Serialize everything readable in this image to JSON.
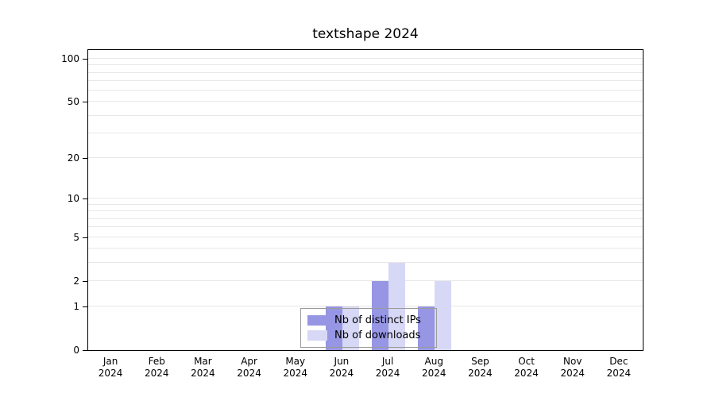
{
  "title": "textshape 2024",
  "chart_data": {
    "type": "bar",
    "title": "textshape 2024",
    "categories": [
      "Jan",
      "Feb",
      "Mar",
      "Apr",
      "May",
      "Jun",
      "Jul",
      "Aug",
      "Sep",
      "Oct",
      "Nov",
      "Dec"
    ],
    "year": "2024",
    "series": [
      {
        "name": "Nb of distinct IPs",
        "color": "#9696e4",
        "values": [
          0,
          0,
          0,
          0,
          0,
          1,
          2,
          1,
          0,
          0,
          0,
          0
        ]
      },
      {
        "name": "Nb of downloads",
        "color": "#d7d7f6",
        "values": [
          0,
          0,
          0,
          0,
          0,
          1,
          3,
          2,
          0,
          0,
          0,
          0
        ]
      }
    ],
    "xlabel": "",
    "ylabel": "",
    "y_ticks": [
      0,
      1,
      2,
      5,
      10,
      20,
      50,
      100
    ],
    "gridline_values": [
      1,
      2,
      3,
      4,
      5,
      6,
      7,
      8,
      9,
      10,
      20,
      30,
      40,
      50,
      60,
      70,
      80,
      90,
      100
    ],
    "scale": "log1p",
    "ylim": [
      0,
      115
    ],
    "grid": true,
    "legend_position": "bottom-center"
  },
  "colors": {
    "bar_dark": "#9696e4",
    "bar_light": "#d7d7f6",
    "gridline": "#e7e7e7",
    "axis": "#000000",
    "legend_border": "#9b9b9b"
  }
}
